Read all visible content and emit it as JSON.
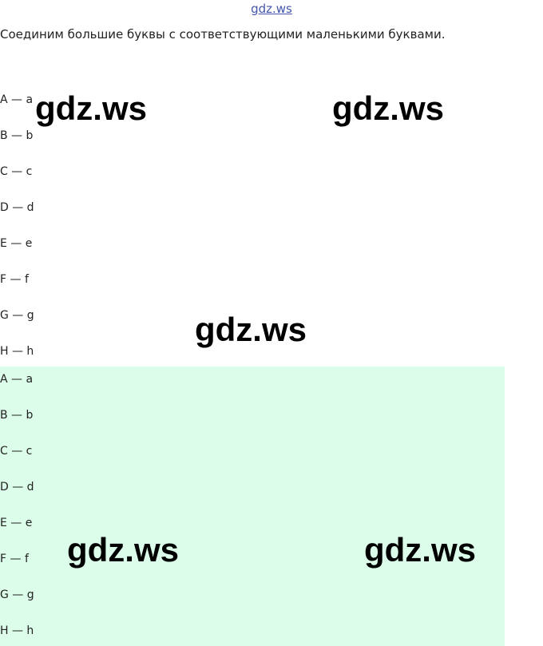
{
  "header": {
    "title": "gdz.ws"
  },
  "instruction": "Соединим большие буквы с соответствующими маленькими буквами.",
  "pairs1": [
    "A — a",
    "B — b",
    "C — c",
    "D — d",
    "E — e",
    "F — f",
    "G — g",
    "H — h"
  ],
  "pairs2": [
    "A — a",
    "B — b",
    "C — c",
    "D — d",
    "E — e",
    "F — f",
    "G — g",
    "H — h"
  ],
  "watermarks": [
    "gdz.ws",
    "gdz.ws",
    "gdz.ws",
    "gdz.ws",
    "gdz.ws"
  ]
}
